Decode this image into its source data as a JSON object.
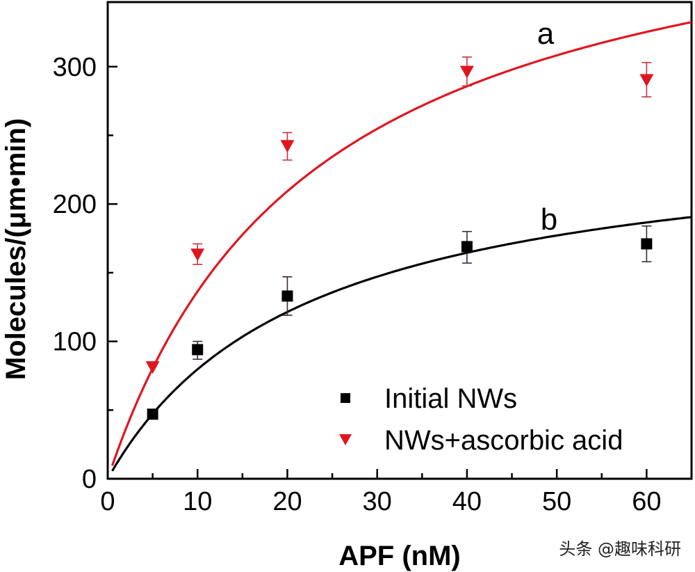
{
  "chart_data": {
    "type": "scatter",
    "title": "",
    "xlabel": "APF (nM)",
    "ylabel": "Molecules/(μm•min)",
    "xlim": [
      0,
      65
    ],
    "ylim": [
      0,
      347
    ],
    "xticks": [
      0,
      10,
      20,
      30,
      40,
      50,
      60
    ],
    "xtick_labels": [
      "0",
      "10",
      "20",
      "30",
      "40",
      "50",
      "60"
    ],
    "xminor": [
      5,
      15,
      25,
      35,
      45,
      55
    ],
    "yticks": [
      0,
      100,
      200,
      300
    ],
    "ytick_labels": [
      "0",
      "100",
      "200",
      "300"
    ],
    "yminor": [
      50,
      150,
      250
    ],
    "grid": false,
    "legend_position": "bottom-right",
    "series": [
      {
        "name": "Initial NWs",
        "curve_label": "b",
        "color": "#000000",
        "marker": "square",
        "x": [
          5,
          10,
          20,
          40,
          60
        ],
        "y": [
          47,
          94,
          133,
          169,
          171
        ],
        "err_low": [
          0,
          7,
          14,
          12,
          13
        ],
        "err_high": [
          0,
          6,
          14,
          11,
          13
        ],
        "fit": {
          "model": "michaelis-menten",
          "vmax": 255,
          "km": 22
        }
      },
      {
        "name": "NWs+ascorbic acid",
        "curve_label": "a",
        "color": "#e0161f",
        "marker": "triangle-down",
        "x": [
          5,
          10,
          20,
          40,
          60
        ],
        "y": [
          81,
          163,
          242,
          296,
          290
        ],
        "err_low": [
          0,
          7,
          10,
          10,
          12
        ],
        "err_high": [
          0,
          8,
          10,
          11,
          13
        ],
        "fit": {
          "model": "michaelis-menten",
          "vmax": 450,
          "km": 23
        }
      }
    ]
  },
  "watermark": "头条 @趣味科研"
}
